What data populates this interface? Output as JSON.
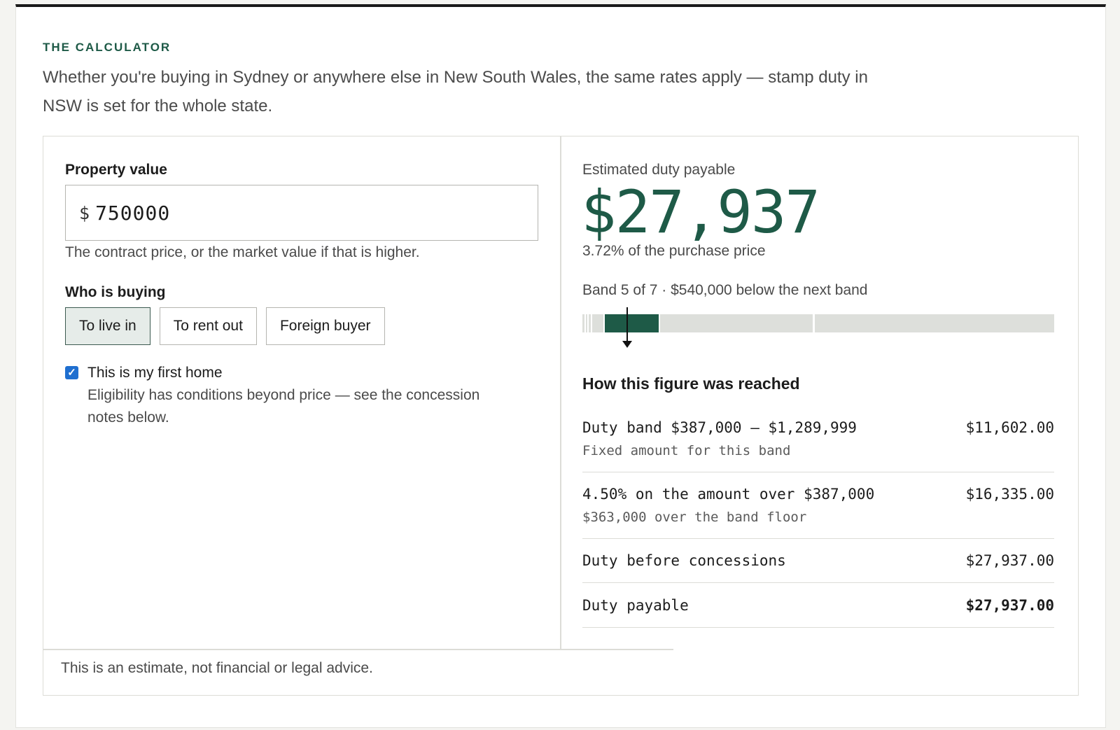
{
  "section": {
    "eyebrow": "THE CALCULATOR",
    "intro": "Whether you're buying in Sydney or anywhere else in New South Wales, the same rates apply — stamp duty in NSW is set for the whole state."
  },
  "form": {
    "property_label": "Property value",
    "currency_symbol": "$",
    "property_value": "750000",
    "property_help": "The contract price, or the market value if that is higher.",
    "buyer_label": "Who is buying",
    "buyer_options": [
      "To live in",
      "To rent out",
      "Foreign buyer"
    ],
    "buyer_selected": "To live in",
    "first_home_label": "This is my first home",
    "first_home_checked": true,
    "first_home_note": "Eligibility has conditions beyond price — see the concession notes below."
  },
  "result": {
    "label": "Estimated duty payable",
    "duty": "$27,937",
    "percentage_text": "3.72% of the purchase price",
    "band_text": "Band 5 of 7 · $540,000 below the next band",
    "band_current": 5,
    "band_total": 7,
    "how_title": "How this figure was reached",
    "breakdown": [
      {
        "main": "Duty band $387,000 – $1,289,999",
        "sub": "Fixed amount for this band",
        "amount": "$11,602.00"
      },
      {
        "main": "4.50% on the amount over $387,000",
        "sub": "$363,000 over the band floor",
        "amount": "$16,335.00"
      },
      {
        "main": "Duty before concessions",
        "sub": "",
        "amount": "$27,937.00"
      },
      {
        "main": "Duty payable",
        "sub": "",
        "amount": "$27,937.00"
      }
    ]
  },
  "footer": {
    "disclaimer": "This is an estimate, not financial or legal advice."
  },
  "colors": {
    "accent": "#1e5a47",
    "checkbox": "#1f6fd0"
  }
}
